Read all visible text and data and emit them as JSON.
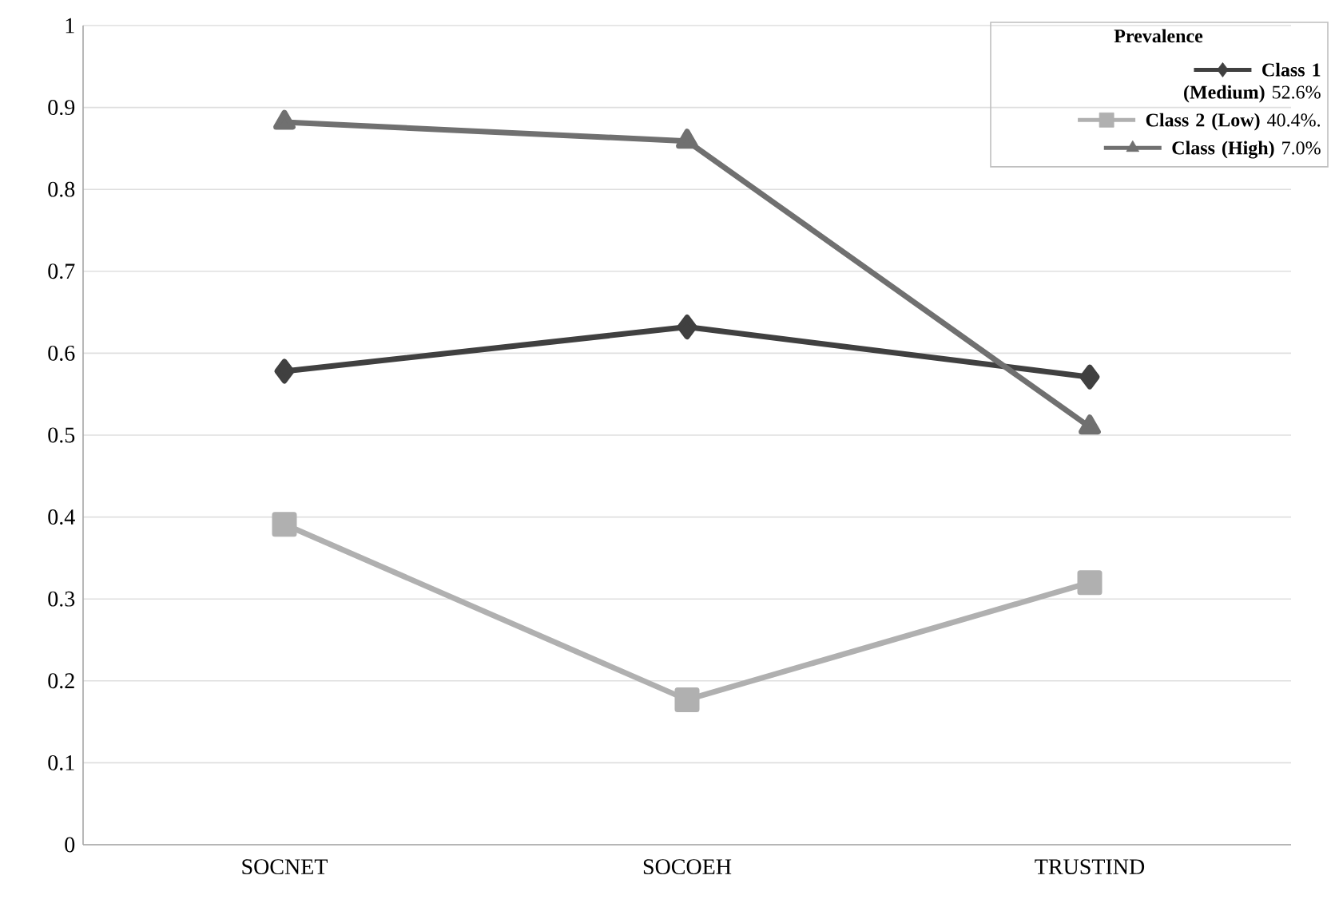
{
  "chart_data": {
    "type": "line",
    "categories": [
      "SOCNET",
      "SOCOEH",
      "TRUSTIND"
    ],
    "ylim": [
      0,
      1
    ],
    "yticks": [
      0,
      0.1,
      0.2,
      0.3,
      0.4,
      0.5,
      0.6,
      0.7,
      0.8,
      0.9,
      1
    ],
    "grid": "y",
    "legend": "top right",
    "legend_title": "Prevalence",
    "series": [
      {
        "name": "**Class 1 (Medium)** 52.6%",
        "color": "#404040",
        "marker": "diamond",
        "values": [
          0.578,
          0.632,
          0.571
        ]
      },
      {
        "name": "**Class 2 (Low)** 40.4%.",
        "color": "#b0b0b0",
        "marker": "square",
        "values": [
          0.391,
          0.177,
          0.32
        ]
      },
      {
        "name": "**Class (High)** 7.0%",
        "color": "#707070",
        "marker": "triangle",
        "values": [
          0.882,
          0.859,
          0.51
        ]
      }
    ]
  }
}
